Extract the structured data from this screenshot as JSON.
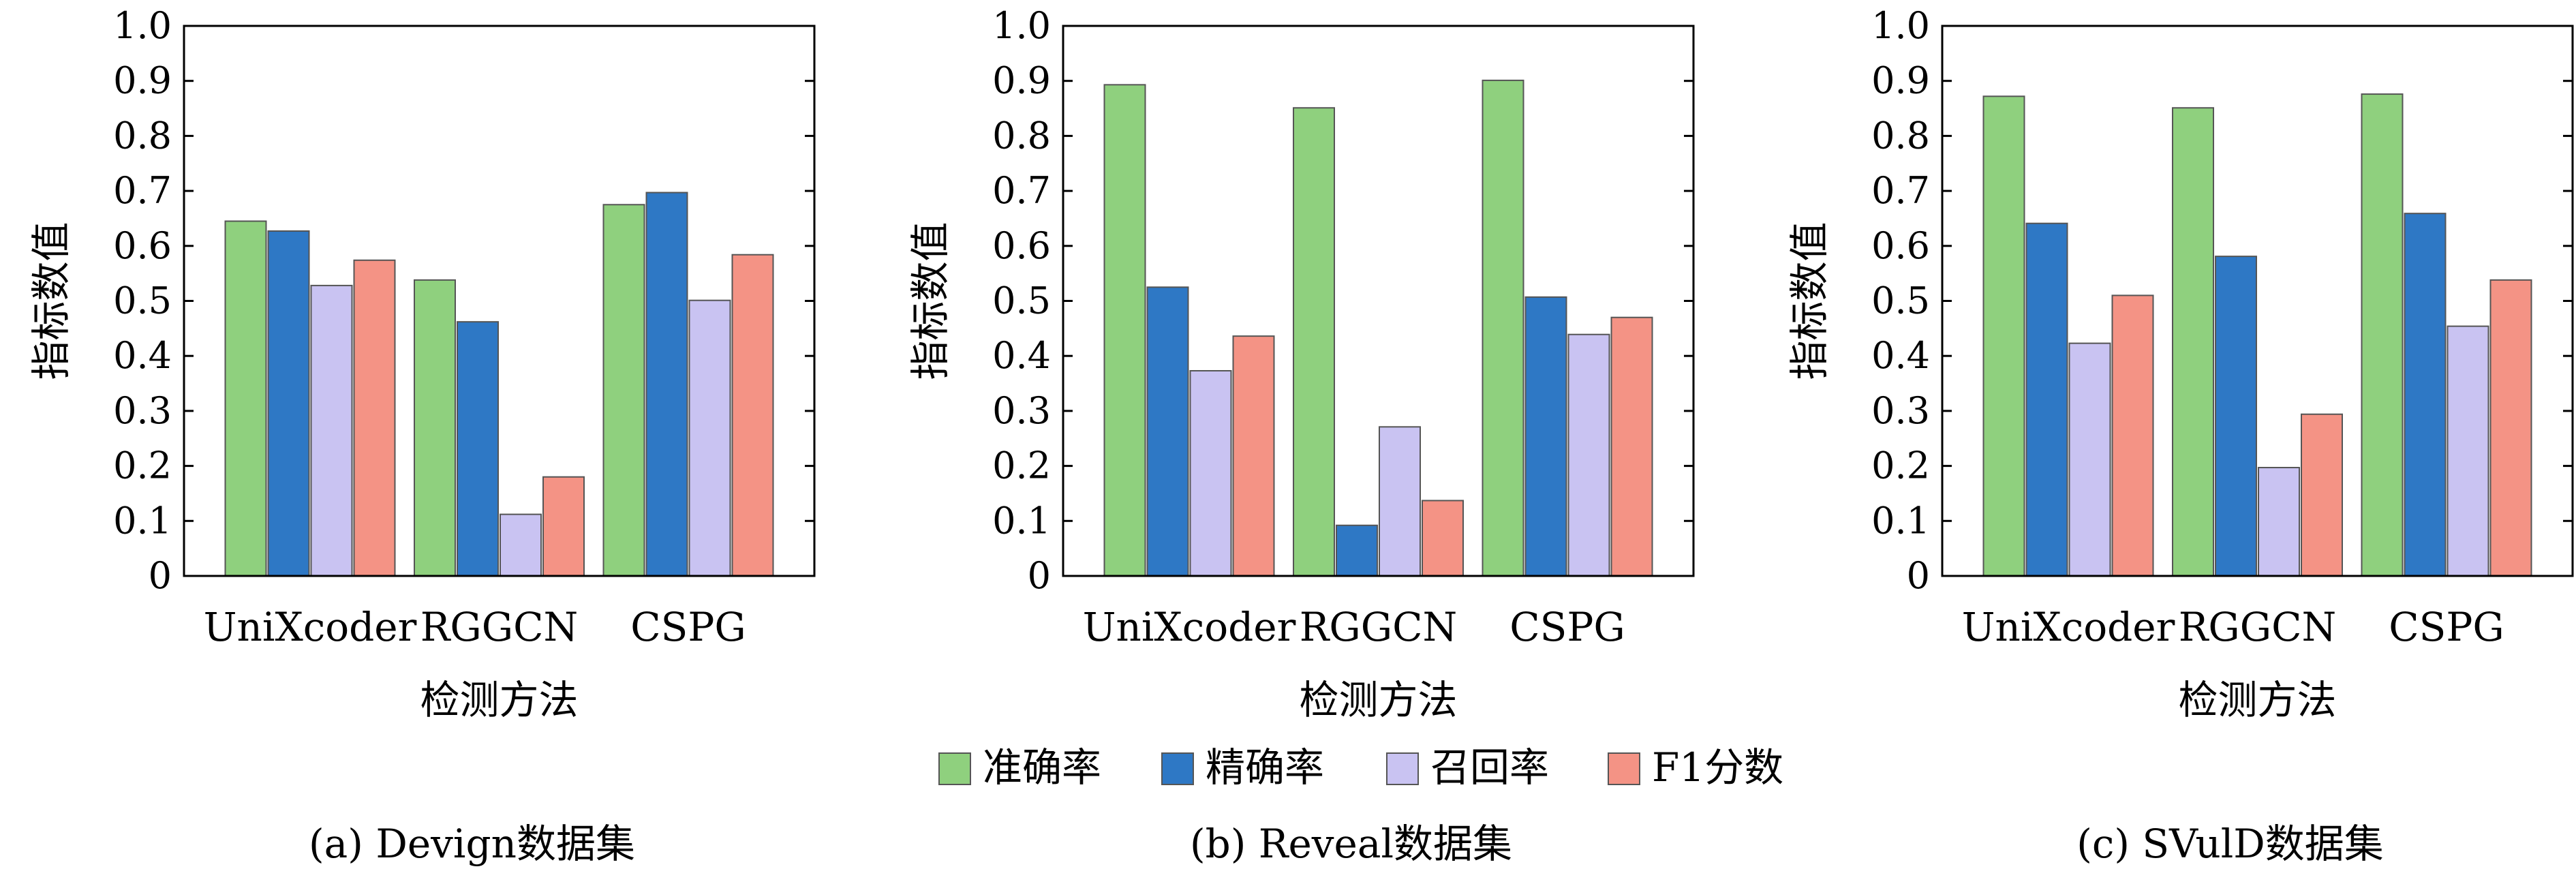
{
  "colors": {
    "准确率": "#8FD07E",
    "精确率": "#2E78C5",
    "召回率": "#C9C3F2",
    "F1分数": "#F49385",
    "axis": "#000000"
  },
  "legend": {
    "placement": "bottom-center",
    "items": [
      "准确率",
      "精确率",
      "召回率",
      "F1分数"
    ]
  },
  "chart_data": [
    {
      "type": "bar",
      "caption": "(a) Devign数据集",
      "xlabel": "检测方法",
      "ylabel": "指标数值",
      "ylim": [
        0,
        1.0
      ],
      "yticks": [
        "0",
        "0.1",
        "0.2",
        "0.3",
        "0.4",
        "0.5",
        "0.6",
        "0.7",
        "0.8",
        "0.9",
        "1.0"
      ],
      "categories": [
        "UniXcoder",
        "RGGCN",
        "CSPG"
      ],
      "grid": false,
      "series": [
        {
          "name": "准确率",
          "values": [
            0.645,
            0.538,
            0.675
          ]
        },
        {
          "name": "精确率",
          "values": [
            0.627,
            0.462,
            0.697
          ]
        },
        {
          "name": "召回率",
          "values": [
            0.528,
            0.112,
            0.501
          ]
        },
        {
          "name": "F1分数",
          "values": [
            0.574,
            0.18,
            0.584
          ]
        }
      ]
    },
    {
      "type": "bar",
      "caption": "(b) Reveal数据集",
      "xlabel": "检测方法",
      "ylabel": "指标数值",
      "ylim": [
        0,
        1.0
      ],
      "yticks": [
        "0",
        "0.1",
        "0.2",
        "0.3",
        "0.4",
        "0.5",
        "0.6",
        "0.7",
        "0.8",
        "0.9",
        "1.0"
      ],
      "categories": [
        "UniXcoder",
        "RGGCN",
        "CSPG"
      ],
      "grid": false,
      "series": [
        {
          "name": "准确率",
          "values": [
            0.893,
            0.851,
            0.901
          ]
        },
        {
          "name": "精确率",
          "values": [
            0.525,
            0.092,
            0.507
          ]
        },
        {
          "name": "召回率",
          "values": [
            0.373,
            0.271,
            0.439
          ]
        },
        {
          "name": "F1分数",
          "values": [
            0.436,
            0.137,
            0.47
          ]
        }
      ]
    },
    {
      "type": "bar",
      "caption": "(c) SVulD数据集",
      "xlabel": "检测方法",
      "ylabel": "指标数值",
      "ylim": [
        0,
        1.0
      ],
      "yticks": [
        "0",
        "0.1",
        "0.2",
        "0.3",
        "0.4",
        "0.5",
        "0.6",
        "0.7",
        "0.8",
        "0.9",
        "1.0"
      ],
      "categories": [
        "UniXcoder",
        "RGGCN",
        "CSPG"
      ],
      "grid": false,
      "series": [
        {
          "name": "准确率",
          "values": [
            0.872,
            0.851,
            0.876
          ]
        },
        {
          "name": "精确率",
          "values": [
            0.641,
            0.581,
            0.659
          ]
        },
        {
          "name": "召回率",
          "values": [
            0.423,
            0.197,
            0.454
          ]
        },
        {
          "name": "F1分数",
          "values": [
            0.51,
            0.294,
            0.538
          ]
        }
      ]
    }
  ]
}
